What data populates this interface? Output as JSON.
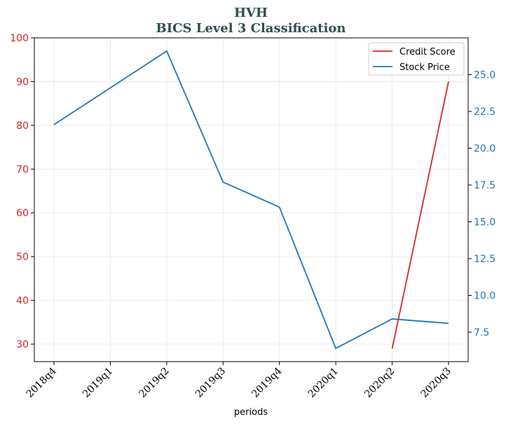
{
  "chart_data": {
    "type": "line",
    "title": "HVH",
    "subtitle": "BICS Level 3 Classification",
    "xlabel": "periods",
    "categories": [
      "2018q4",
      "2019q1",
      "2019q2",
      "2019q3",
      "2019q4",
      "2020q1",
      "2020q2",
      "2020q3"
    ],
    "left_axis": {
      "ylim": [
        26,
        100
      ],
      "ticks": [
        30,
        40,
        50,
        60,
        70,
        80,
        90,
        100
      ],
      "color": "#d62728"
    },
    "right_axis": {
      "ylim": [
        5.5,
        27.5
      ],
      "ticks": [
        7.5,
        10.0,
        12.5,
        15.0,
        17.5,
        20.0,
        22.5,
        25.0
      ],
      "tick_labels": [
        "7.5",
        "10.0",
        "12.5",
        "15.0",
        "17.5",
        "20.0",
        "22.5",
        "25.0"
      ],
      "color": "#1f77b4"
    },
    "series": [
      {
        "name": "Credit Score",
        "axis": "left",
        "color": "#d62728",
        "values": [
          null,
          null,
          null,
          null,
          null,
          null,
          29,
          90
        ]
      },
      {
        "name": "Stock Price",
        "axis": "right",
        "color": "#1f77b4",
        "values": [
          21.6,
          24.1,
          26.6,
          17.7,
          16.0,
          6.4,
          8.4,
          8.1
        ]
      }
    ],
    "legend_placement": "top-right",
    "grid": true
  }
}
